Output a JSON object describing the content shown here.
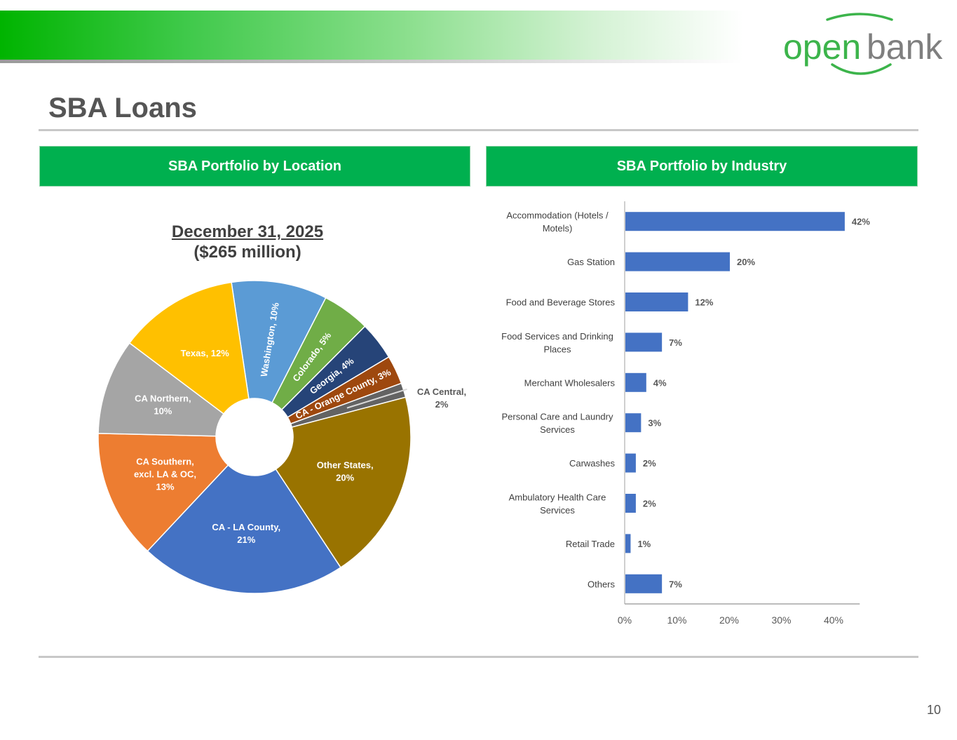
{
  "header": {
    "logo_text_open": "open",
    "logo_text_bank": "bank",
    "page_title": "SBA Loans",
    "page_number": "10"
  },
  "sections": {
    "left_title": "SBA Portfolio by Location",
    "right_title": "SBA Portfolio by Industry"
  },
  "pie_caption": {
    "date": "December 31, 2025",
    "amount": "($265 million)"
  },
  "colors": {
    "brand_green": "#00b04f",
    "bar_blue": "#4472c4"
  },
  "chart_data": [
    {
      "type": "pie",
      "title": "",
      "donut": true,
      "slices": [
        {
          "label": "Washington, 10%",
          "value": 10,
          "color": "#5b9bd5"
        },
        {
          "label": "Colorado, 5%",
          "value": 5,
          "color": "#70ad47"
        },
        {
          "label": "Georgia, 4%",
          "value": 4,
          "color": "#264478"
        },
        {
          "label": "CA - Orange County, 3%",
          "value": 3,
          "color": "#9e480e"
        },
        {
          "label": "CA Central, 2%",
          "value": 1.5,
          "color": "#636363"
        },
        {
          "label": "Other States, 20%",
          "value": 20,
          "color": "#997300"
        },
        {
          "label": "CA - LA County, 21%",
          "value": 21.5,
          "color": "#4472c4"
        },
        {
          "label": "CA Southern, excl. LA & OC, 13%",
          "value": 13.5,
          "color": "#ed7d31"
        },
        {
          "label": "CA Northern, 10%",
          "value": 10,
          "color": "#a5a5a5"
        },
        {
          "label": "Texas, 12%",
          "value": 12.5,
          "color": "#ffc000"
        }
      ]
    },
    {
      "type": "bar",
      "orientation": "horizontal",
      "title": "",
      "categories": [
        "Accommodation (Hotels / Motels)",
        "Gas Station",
        "Food and Beverage Stores",
        "Food Services and Drinking Places",
        "Merchant Wholesalers",
        "Personal Care and Laundry Services",
        "Carwashes",
        "Ambulatory Health Care Services",
        "Retail Trade",
        "Others"
      ],
      "values": [
        42,
        20,
        12,
        7,
        4,
        3,
        2,
        2,
        1,
        7
      ],
      "data_labels": [
        "42%",
        "20%",
        "12%",
        "7%",
        "4%",
        "3%",
        "2%",
        "2%",
        "1%",
        "7%"
      ],
      "xlim": [
        0,
        45
      ],
      "x_ticks": [
        0,
        10,
        20,
        30,
        40
      ],
      "x_tick_labels": [
        "0%",
        "10%",
        "20%",
        "30%",
        "40%"
      ],
      "grid": false
    }
  ]
}
